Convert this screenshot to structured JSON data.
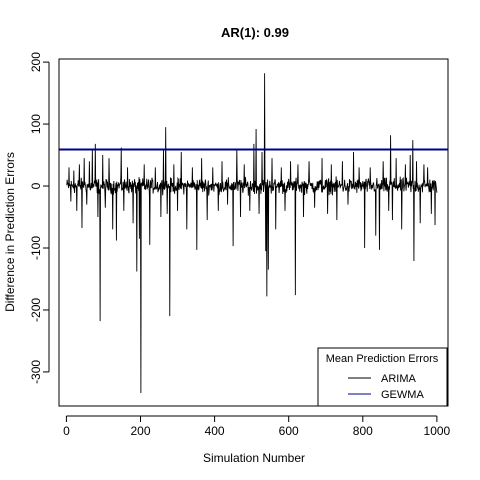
{
  "chart_data": {
    "type": "line",
    "title": "AR(1): 0.99",
    "xlabel": "Simulation Number",
    "ylabel": "Difference in Prediction Errors",
    "xlim": [
      -20,
      1030
    ],
    "ylim": [
      -355,
      205
    ],
    "x_ticks": [
      0,
      200,
      400,
      600,
      800,
      1000
    ],
    "y_ticks": [
      -300,
      -200,
      -100,
      0,
      100,
      200
    ],
    "grid": false,
    "legend": {
      "title": "Mean Prediction Errors",
      "position": "bottom-right",
      "entries": [
        {
          "label": "ARIMA",
          "color": "#000000"
        },
        {
          "label": "GEWMA",
          "color": "#00008B"
        }
      ]
    },
    "series": [
      {
        "name": "ARIMA",
        "color": "#000000",
        "n": 1000,
        "baseline_noise": 10,
        "spikes": [
          [
            7,
            30
          ],
          [
            12,
            -25
          ],
          [
            20,
            25
          ],
          [
            28,
            -40
          ],
          [
            35,
            35
          ],
          [
            42,
            -68
          ],
          [
            48,
            45
          ],
          [
            55,
            -30
          ],
          [
            62,
            40
          ],
          [
            70,
            60
          ],
          [
            78,
            68
          ],
          [
            85,
            -50
          ],
          [
            91,
            -218
          ],
          [
            98,
            50
          ],
          [
            105,
            -35
          ],
          [
            115,
            45
          ],
          [
            125,
            -70
          ],
          [
            135,
            -88
          ],
          [
            148,
            62
          ],
          [
            155,
            -40
          ],
          [
            165,
            30
          ],
          [
            180,
            -60
          ],
          [
            190,
            -138
          ],
          [
            197,
            -85
          ],
          [
            201,
            -334
          ],
          [
            210,
            35
          ],
          [
            225,
            -95
          ],
          [
            240,
            30
          ],
          [
            255,
            -50
          ],
          [
            262,
            58
          ],
          [
            268,
            95
          ],
          [
            272,
            -45
          ],
          [
            279,
            -210
          ],
          [
            290,
            35
          ],
          [
            300,
            -40
          ],
          [
            310,
            55
          ],
          [
            325,
            -70
          ],
          [
            340,
            30
          ],
          [
            352,
            -103
          ],
          [
            365,
            45
          ],
          [
            380,
            -55
          ],
          [
            395,
            30
          ],
          [
            410,
            -40
          ],
          [
            420,
            40
          ],
          [
            435,
            -30
          ],
          [
            450,
            -97
          ],
          [
            460,
            60
          ],
          [
            470,
            -50
          ],
          [
            480,
            35
          ],
          [
            495,
            -40
          ],
          [
            506,
            68
          ],
          [
            512,
            92
          ],
          [
            520,
            -45
          ],
          [
            528,
            55
          ],
          [
            535,
            182
          ],
          [
            538,
            -105
          ],
          [
            541,
            -178
          ],
          [
            545,
            -135
          ],
          [
            555,
            45
          ],
          [
            565,
            -70
          ],
          [
            580,
            30
          ],
          [
            590,
            -40
          ],
          [
            605,
            40
          ],
          [
            618,
            -176
          ],
          [
            625,
            35
          ],
          [
            640,
            -50
          ],
          [
            655,
            40
          ],
          [
            670,
            -35
          ],
          [
            690,
            45
          ],
          [
            705,
            -45
          ],
          [
            715,
            35
          ],
          [
            730,
            -55
          ],
          [
            745,
            40
          ],
          [
            760,
            -30
          ],
          [
            775,
            55
          ],
          [
            790,
            30
          ],
          [
            805,
            -100
          ],
          [
            820,
            30
          ],
          [
            835,
            -80
          ],
          [
            845,
            -103
          ],
          [
            855,
            40
          ],
          [
            870,
            -40
          ],
          [
            875,
            82
          ],
          [
            880,
            -55
          ],
          [
            890,
            45
          ],
          [
            905,
            -70
          ],
          [
            915,
            35
          ],
          [
            928,
            50
          ],
          [
            935,
            74
          ],
          [
            938,
            -121
          ],
          [
            945,
            40
          ],
          [
            955,
            -60
          ],
          [
            965,
            35
          ],
          [
            975,
            30
          ],
          [
            985,
            -45
          ],
          [
            995,
            -63
          ]
        ]
      },
      {
        "name": "GEWMA",
        "color": "#00008B",
        "horizontal_line": 59
      }
    ]
  }
}
